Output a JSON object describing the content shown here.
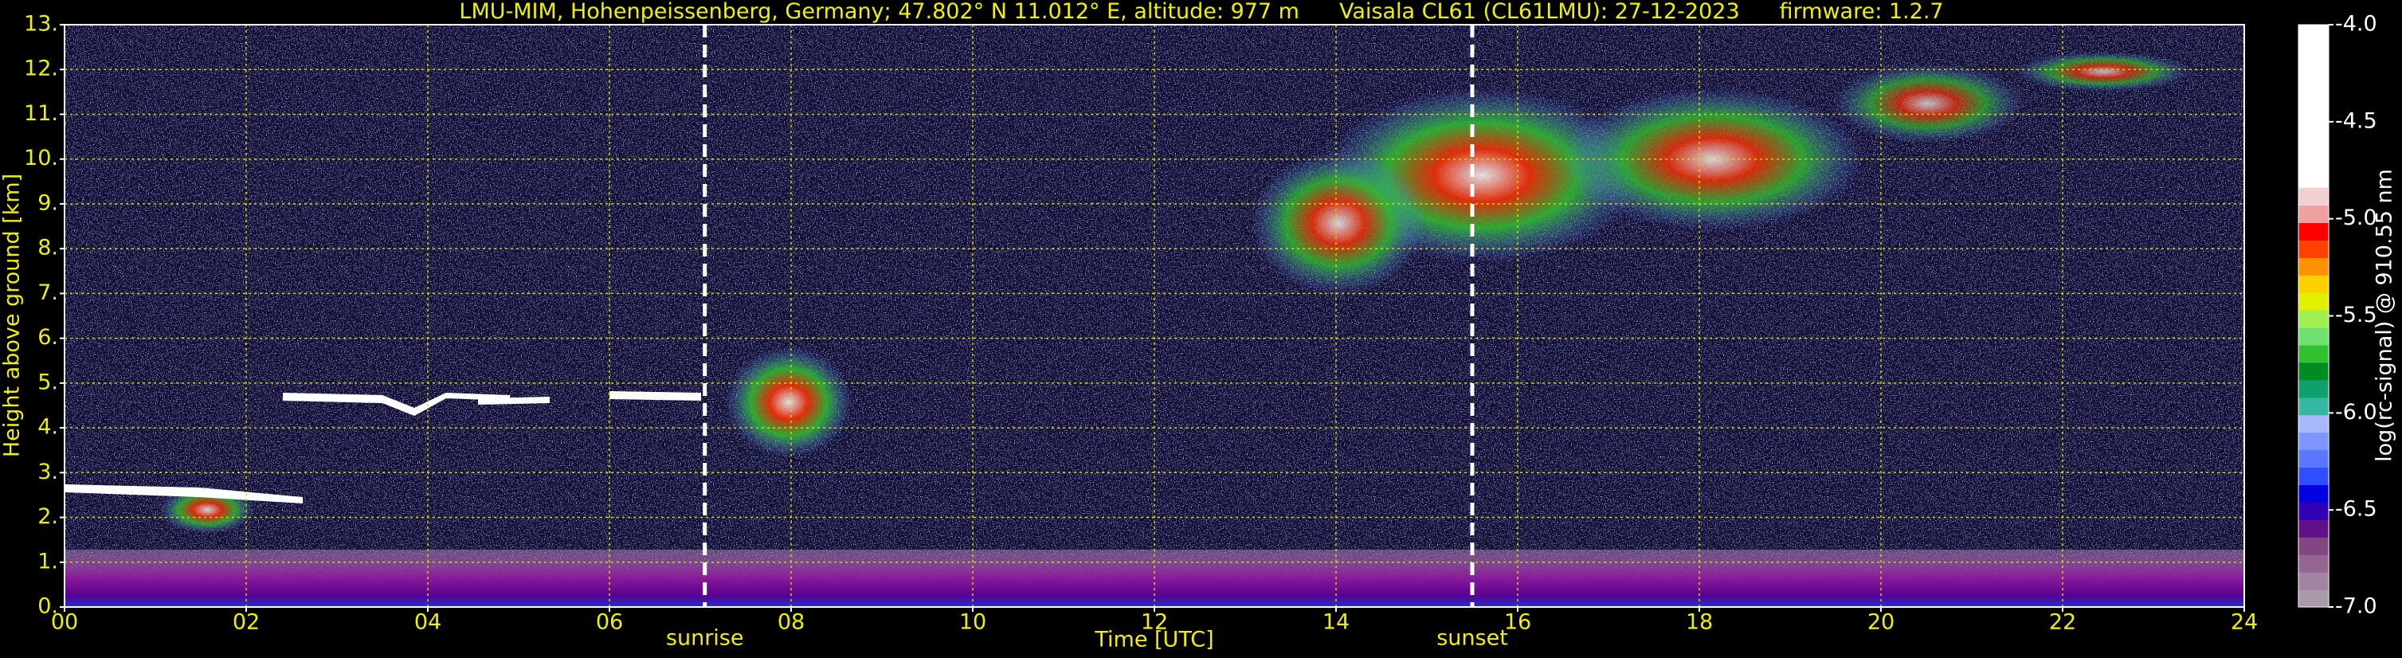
{
  "chart_data": {
    "type": "heatmap",
    "title": [
      "LMU-MIM, Hohenpeissenberg, Germany; 47.802° N 11.012° E, altitude: 977 m",
      "Vaisala CL61 (CL61LMU): 27-12-2023",
      "firmware: 1.2.7"
    ],
    "xlabel": "Time [UTC]",
    "ylabel": "Height above ground [km]",
    "xlim": [
      0,
      24
    ],
    "xticks": [
      {
        "value": 0,
        "label": "00"
      },
      {
        "value": 2,
        "label": "02"
      },
      {
        "value": 4,
        "label": "04"
      },
      {
        "value": 6,
        "label": "06"
      },
      {
        "value": 8,
        "label": "08"
      },
      {
        "value": 10,
        "label": "10"
      },
      {
        "value": 12,
        "label": "12"
      },
      {
        "value": 14,
        "label": "14"
      },
      {
        "value": 16,
        "label": "16"
      },
      {
        "value": 18,
        "label": "18"
      },
      {
        "value": 20,
        "label": "20"
      },
      {
        "value": 22,
        "label": "22"
      },
      {
        "value": 24,
        "label": "24"
      }
    ],
    "ylim": [
      0,
      13
    ],
    "yticks": [
      {
        "value": 0,
        "label": "0."
      },
      {
        "value": 1,
        "label": "1."
      },
      {
        "value": 2,
        "label": "2."
      },
      {
        "value": 3,
        "label": "3."
      },
      {
        "value": 4,
        "label": "4."
      },
      {
        "value": 5,
        "label": "5."
      },
      {
        "value": 6,
        "label": "6."
      },
      {
        "value": 7,
        "label": "7."
      },
      {
        "value": 8,
        "label": "8."
      },
      {
        "value": 9,
        "label": "9."
      },
      {
        "value": 10,
        "label": "10."
      },
      {
        "value": 11,
        "label": "11."
      },
      {
        "value": 12,
        "label": "12."
      },
      {
        "value": 13,
        "label": "13."
      }
    ],
    "grid": true,
    "grid_color": "#d8d800",
    "events": [
      {
        "label": "sunrise",
        "x": 7.05
      },
      {
        "label": "sunset",
        "x": 15.5
      }
    ],
    "colorbar": {
      "label": "log(rc-signal) @ 910.55 nm",
      "clim": [
        -7,
        -4
      ],
      "ticks": [
        {
          "value": -7,
          "label": "-7.0"
        },
        {
          "value": -6.5,
          "label": "-6.5"
        },
        {
          "value": -6,
          "label": "-6.0"
        },
        {
          "value": -5.5,
          "label": "-5.5"
        },
        {
          "value": -5,
          "label": "-5.0"
        },
        {
          "value": -4.5,
          "label": "-4.5"
        },
        {
          "value": -4,
          "label": "-4.0"
        }
      ],
      "colors": [
        "#a89aa8",
        "#a284a2",
        "#946694",
        "#824682",
        "#62108a",
        "#3000b4",
        "#0000e0",
        "#2f4fff",
        "#5a78ff",
        "#7d96ff",
        "#a8b8ff",
        "#36b8a0",
        "#10a070",
        "#008c20",
        "#30c030",
        "#70e070",
        "#a0f050",
        "#e0f000",
        "#ffd000",
        "#ff9000",
        "#ff4000",
        "#ff0000",
        "#f0a0a0",
        "#f0d0d0"
      ]
    }
  }
}
